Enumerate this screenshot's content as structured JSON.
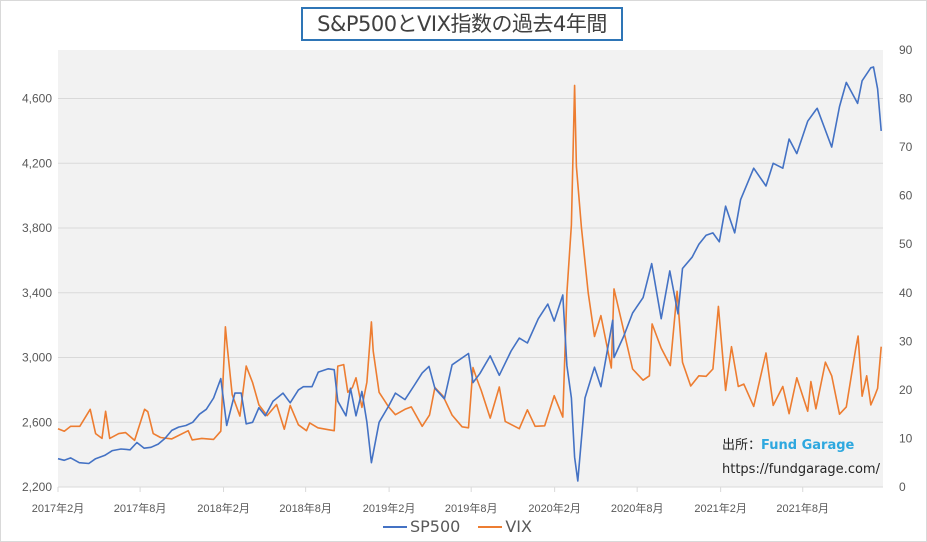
{
  "chart_data": {
    "type": "line",
    "title": "S&P500とVIX指数の過去4年間",
    "x_tick_labels": [
      "2017年2月",
      "2017年8月",
      "2018年2月",
      "2018年8月",
      "2019年2月",
      "2019年8月",
      "2020年2月",
      "2020年8月",
      "2021年2月",
      "2021年8月"
    ],
    "x_ticks": [
      "2017-02-01",
      "2017-08-01",
      "2018-02-01",
      "2018-08-01",
      "2019-02-01",
      "2019-08-01",
      "2020-02-01",
      "2020-08-01",
      "2021-02-01",
      "2021-08-01"
    ],
    "xlim": [
      "2017-02-01",
      "2022-01-25"
    ],
    "y_left": {
      "lim": [
        2200,
        4900
      ],
      "tick_labels": [
        "2,200",
        "2,600",
        "3,000",
        "3,400",
        "3,800",
        "4,200",
        "4,600"
      ],
      "ticks": [
        2200,
        2600,
        3000,
        3400,
        3800,
        4200,
        4600
      ]
    },
    "y_right": {
      "lim": [
        0,
        90
      ],
      "tick_labels": [
        "0",
        "10",
        "20",
        "30",
        "40",
        "50",
        "60",
        "70",
        "80",
        "90"
      ],
      "ticks": [
        0,
        10,
        20,
        30,
        40,
        50,
        60,
        70,
        80,
        90
      ]
    },
    "grid": true,
    "legend_position": "bottom",
    "series": [
      {
        "name": "SP500",
        "axis": "left",
        "color": "#4472c4",
        "x": [
          "2017-02-01",
          "2017-02-15",
          "2017-03-01",
          "2017-03-20",
          "2017-04-10",
          "2017-04-25",
          "2017-05-15",
          "2017-06-01",
          "2017-06-20",
          "2017-07-10",
          "2017-07-25",
          "2017-08-10",
          "2017-08-25",
          "2017-09-10",
          "2017-09-25",
          "2017-10-10",
          "2017-10-25",
          "2017-11-10",
          "2017-11-25",
          "2017-12-10",
          "2017-12-25",
          "2018-01-10",
          "2018-01-26",
          "2018-02-08",
          "2018-02-26",
          "2018-03-12",
          "2018-03-23",
          "2018-04-06",
          "2018-04-20",
          "2018-05-04",
          "2018-05-21",
          "2018-06-12",
          "2018-06-28",
          "2018-07-16",
          "2018-07-27",
          "2018-08-15",
          "2018-08-29",
          "2018-09-20",
          "2018-10-03",
          "2018-10-11",
          "2018-10-29",
          "2018-11-08",
          "2018-11-20",
          "2018-12-03",
          "2018-12-14",
          "2018-12-24",
          "2019-01-10",
          "2019-01-31",
          "2019-02-15",
          "2019-03-08",
          "2019-03-29",
          "2019-04-15",
          "2019-04-30",
          "2019-05-13",
          "2019-06-03",
          "2019-06-20",
          "2019-07-26",
          "2019-08-05",
          "2019-08-20",
          "2019-09-12",
          "2019-10-02",
          "2019-10-28",
          "2019-11-15",
          "2019-12-03",
          "2019-12-27",
          "2020-01-17",
          "2020-01-31",
          "2020-02-19",
          "2020-02-28",
          "2020-03-09",
          "2020-03-16",
          "2020-03-23",
          "2020-04-08",
          "2020-04-29",
          "2020-05-13",
          "2020-06-08",
          "2020-06-11",
          "2020-07-02",
          "2020-07-22",
          "2020-08-14",
          "2020-09-02",
          "2020-09-23",
          "2020-10-12",
          "2020-10-30",
          "2020-11-09",
          "2020-11-30",
          "2020-12-15",
          "2020-12-31",
          "2021-01-15",
          "2021-01-29",
          "2021-02-12",
          "2021-03-04",
          "2021-03-17",
          "2021-04-15",
          "2021-05-12",
          "2021-05-28",
          "2021-06-18",
          "2021-07-02",
          "2021-07-19",
          "2021-08-12",
          "2021-08-30",
          "2021-09-02",
          "2021-10-04",
          "2021-10-21",
          "2021-11-05",
          "2021-11-30",
          "2021-12-10",
          "2021-12-29",
          "2022-01-04",
          "2022-01-13",
          "2022-01-21"
        ],
        "y": [
          2375,
          2365,
          2380,
          2350,
          2345,
          2375,
          2395,
          2425,
          2435,
          2430,
          2475,
          2440,
          2445,
          2465,
          2500,
          2550,
          2570,
          2580,
          2600,
          2650,
          2680,
          2750,
          2870,
          2580,
          2780,
          2780,
          2590,
          2600,
          2690,
          2640,
          2730,
          2780,
          2720,
          2800,
          2820,
          2820,
          2910,
          2930,
          2925,
          2730,
          2640,
          2810,
          2640,
          2790,
          2600,
          2350,
          2600,
          2700,
          2780,
          2740,
          2830,
          2905,
          2945,
          2810,
          2745,
          2955,
          3025,
          2845,
          2900,
          3010,
          2890,
          3040,
          3120,
          3090,
          3240,
          3330,
          3225,
          3386,
          2950,
          2750,
          2385,
          2237,
          2750,
          2940,
          2820,
          3230,
          3000,
          3130,
          3275,
          3370,
          3580,
          3240,
          3535,
          3270,
          3550,
          3620,
          3700,
          3756,
          3770,
          3715,
          3935,
          3770,
          3975,
          4170,
          4060,
          4200,
          4170,
          4350,
          4260,
          4460,
          4530,
          4540,
          4300,
          4550,
          4700,
          4570,
          4710,
          4790,
          4795,
          4660,
          4400
        ]
      },
      {
        "name": "VIX",
        "axis": "right",
        "color": "#ed7d31",
        "x": [
          "2017-02-01",
          "2017-02-15",
          "2017-03-01",
          "2017-03-21",
          "2017-04-13",
          "2017-04-25",
          "2017-05-09",
          "2017-05-17",
          "2017-05-26",
          "2017-06-15",
          "2017-06-30",
          "2017-07-20",
          "2017-08-11",
          "2017-08-18",
          "2017-08-30",
          "2017-09-15",
          "2017-10-10",
          "2017-11-15",
          "2017-11-24",
          "2017-12-15",
          "2018-01-10",
          "2018-01-26",
          "2018-02-05",
          "2018-02-09",
          "2018-02-20",
          "2018-03-09",
          "2018-03-23",
          "2018-04-06",
          "2018-04-20",
          "2018-05-08",
          "2018-05-29",
          "2018-06-15",
          "2018-06-28",
          "2018-07-16",
          "2018-08-03",
          "2018-08-10",
          "2018-08-28",
          "2018-09-20",
          "2018-10-03",
          "2018-10-11",
          "2018-10-24",
          "2018-11-02",
          "2018-11-12",
          "2018-11-20",
          "2018-12-03",
          "2018-12-14",
          "2018-12-24",
          "2018-12-28",
          "2019-01-10",
          "2019-01-31",
          "2019-02-15",
          "2019-03-08",
          "2019-03-22",
          "2019-04-15",
          "2019-05-01",
          "2019-05-13",
          "2019-05-31",
          "2019-06-20",
          "2019-07-12",
          "2019-07-26",
          "2019-08-05",
          "2019-08-14",
          "2019-08-23",
          "2019-09-12",
          "2019-10-02",
          "2019-10-15",
          "2019-11-15",
          "2019-12-03",
          "2019-12-20",
          "2020-01-10",
          "2020-01-31",
          "2020-02-19",
          "2020-02-28",
          "2020-03-09",
          "2020-03-16",
          "2020-03-20",
          "2020-03-31",
          "2020-04-15",
          "2020-04-29",
          "2020-05-13",
          "2020-06-05",
          "2020-06-11",
          "2020-06-26",
          "2020-07-22",
          "2020-08-14",
          "2020-08-28",
          "2020-09-03",
          "2020-09-23",
          "2020-10-13",
          "2020-10-28",
          "2020-11-09",
          "2020-11-27",
          "2020-12-15",
          "2020-12-31",
          "2021-01-15",
          "2021-01-27",
          "2021-02-12",
          "2021-02-25",
          "2021-03-12",
          "2021-03-24",
          "2021-04-15",
          "2021-05-12",
          "2021-05-28",
          "2021-06-18",
          "2021-07-02",
          "2021-07-19",
          "2021-08-12",
          "2021-08-19",
          "2021-08-30",
          "2021-09-20",
          "2021-10-04",
          "2021-10-21",
          "2021-11-05",
          "2021-11-26",
          "2021-12-01",
          "2021-12-10",
          "2021-12-20",
          "2021-12-29",
          "2022-01-07",
          "2022-01-13",
          "2022-01-21"
        ],
        "y": [
          12,
          11.5,
          12.5,
          12.5,
          16,
          11,
          10,
          15.6,
          10,
          11,
          11.2,
          9.6,
          16,
          15.5,
          11,
          10.2,
          9.9,
          11.6,
          9.7,
          10,
          9.8,
          11.5,
          33,
          29,
          19,
          14.6,
          24.9,
          21.5,
          16.9,
          14.7,
          17,
          11.9,
          16.8,
          12.8,
          11.6,
          13.2,
          12.2,
          11.8,
          11.6,
          24.9,
          25.2,
          19.5,
          20.5,
          22.5,
          16.4,
          21.6,
          34,
          28,
          19.5,
          16.5,
          14.9,
          16,
          16.5,
          12.5,
          14.8,
          20.5,
          18.7,
          14.8,
          12.4,
          12.2,
          24.6,
          22.1,
          19.9,
          14.2,
          20.6,
          13.5,
          12,
          15.9,
          12.5,
          12.6,
          18.8,
          14.4,
          40,
          54,
          82.7,
          66,
          53.5,
          40,
          31,
          35.3,
          24.5,
          40.8,
          34.7,
          24.3,
          22,
          22.9,
          33.6,
          28.6,
          25,
          40.3,
          25.7,
          20.8,
          22.9,
          22.8,
          24.3,
          37.2,
          19.9,
          28.9,
          20.7,
          21.2,
          16.6,
          27.6,
          16.8,
          20.7,
          15.1,
          22.5,
          15.6,
          21.7,
          16.1,
          25.7,
          22.9,
          15,
          16.5,
          28.6,
          31.1,
          18.7,
          22.9,
          16.9,
          18.8,
          20.3,
          28.9
        ]
      }
    ]
  },
  "source": {
    "label": "出所：",
    "brand": "Fund Garage",
    "url": "https://fundgarage.com/"
  },
  "legend": [
    "SP500",
    "VIX"
  ]
}
